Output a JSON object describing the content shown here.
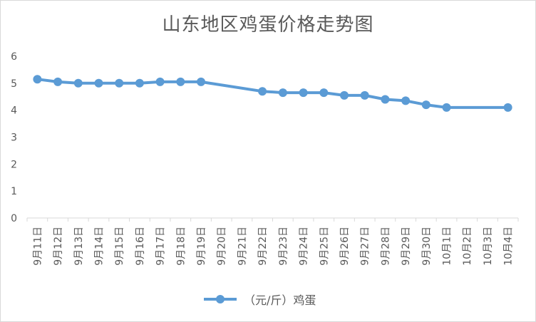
{
  "chart_data": {
    "type": "line",
    "title": "山东地区鸡蛋价格走势图",
    "categories": [
      "9月11日",
      "9月12日",
      "9月13日",
      "9月14日",
      "9月15日",
      "9月16日",
      "9月17日",
      "9月18日",
      "9月19日",
      "9月20日",
      "9月21日",
      "9月22日",
      "9月23日",
      "9月24日",
      "9月25日",
      "9月26日",
      "9月27日",
      "9月28日",
      "9月29日",
      "9月30日",
      "10月1日",
      "10月2日",
      "10月3日",
      "10月4日"
    ],
    "series": [
      {
        "name": "（元/斤）鸡蛋",
        "values": [
          5.15,
          5.05,
          5.0,
          5.0,
          5.0,
          5.0,
          5.05,
          5.05,
          5.05,
          null,
          null,
          4.7,
          4.65,
          4.65,
          4.65,
          4.55,
          4.55,
          4.4,
          4.35,
          4.2,
          4.1,
          null,
          null,
          4.1
        ]
      }
    ],
    "yticks": [
      "0",
      "1",
      "2",
      "3",
      "4",
      "5",
      "6"
    ],
    "ylim": [
      0,
      6
    ],
    "grid": false,
    "legend": "bottom",
    "color": "#5b9bd5"
  }
}
